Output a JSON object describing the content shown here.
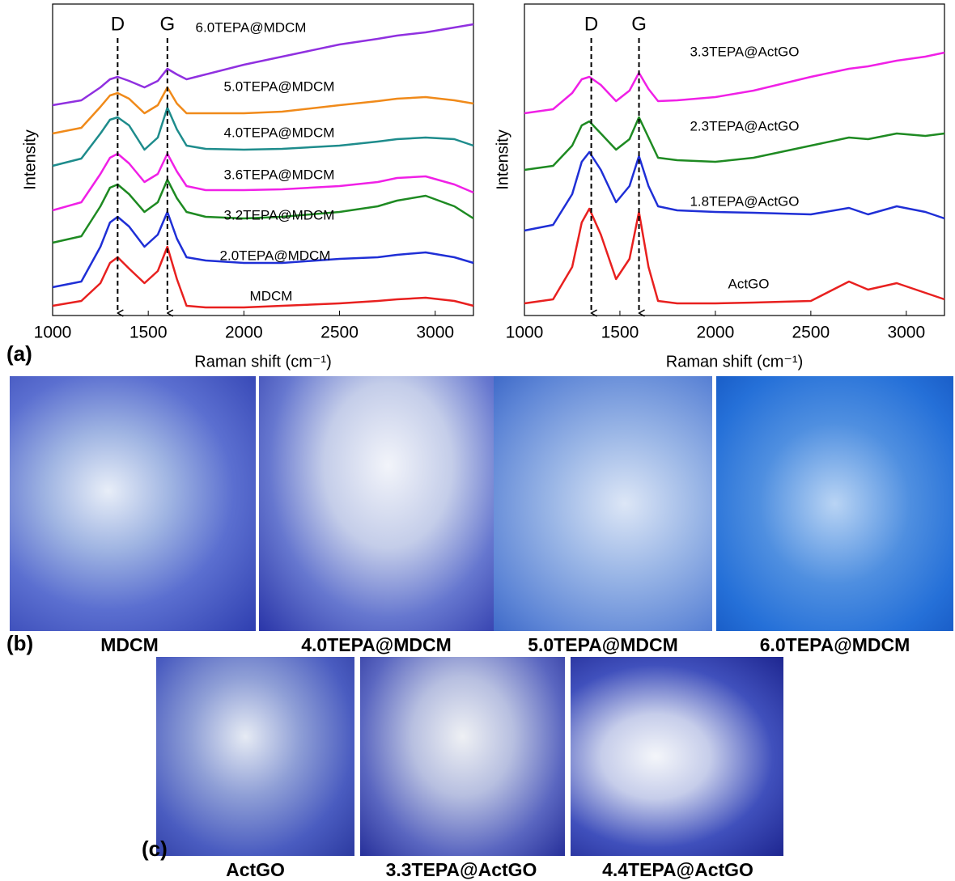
{
  "chart_data": [
    {
      "type": "line",
      "xlabel": "Raman shift (cm⁻¹)",
      "ylabel": "Intensity",
      "x": [
        1000,
        1150,
        1250,
        1300,
        1340,
        1400,
        1480,
        1550,
        1600,
        1650,
        1700,
        1800,
        2000,
        2200,
        2500,
        2700,
        2800,
        2950,
        3100,
        3200
      ],
      "xlim": [
        1000,
        3200
      ],
      "xticks": [
        1000,
        1500,
        2000,
        2500,
        3000
      ],
      "ylim": [
        0,
        385
      ],
      "peak_lines": [
        {
          "label": "D",
          "x": 1340
        },
        {
          "label": "G",
          "x": 1600
        }
      ],
      "series": [
        {
          "name": "MDCM",
          "color": "#e8201f",
          "values": [
            12,
            18,
            40,
            65,
            72,
            58,
            40,
            55,
            85,
            45,
            12,
            10,
            10,
            12,
            15,
            18,
            20,
            22,
            18,
            12
          ]
        },
        {
          "name": "2.0TEPA@MDCM",
          "color": "#1f2fd6",
          "values": [
            35,
            42,
            85,
            115,
            122,
            110,
            85,
            100,
            128,
            95,
            72,
            68,
            65,
            65,
            70,
            72,
            75,
            78,
            72,
            65
          ]
        },
        {
          "name": "3.2TEPA@MDCM",
          "color": "#1e8a22",
          "values": [
            90,
            98,
            135,
            158,
            162,
            150,
            128,
            140,
            168,
            145,
            128,
            122,
            120,
            122,
            128,
            135,
            142,
            148,
            135,
            120
          ]
        },
        {
          "name": "3.6TEPA@MDCM",
          "color": "#f020e6",
          "values": [
            130,
            140,
            175,
            195,
            200,
            188,
            165,
            175,
            200,
            178,
            160,
            155,
            155,
            156,
            160,
            165,
            170,
            172,
            162,
            152
          ]
        },
        {
          "name": "4.0TEPA@MDCM",
          "color": "#1e8c8c",
          "values": [
            185,
            194,
            225,
            242,
            245,
            235,
            205,
            220,
            257,
            230,
            210,
            206,
            205,
            206,
            210,
            215,
            218,
            220,
            218,
            210
          ]
        },
        {
          "name": "5.0TEPA@MDCM",
          "color": "#f08a1a",
          "values": [
            225,
            232,
            258,
            272,
            275,
            268,
            250,
            260,
            282,
            262,
            250,
            250,
            250,
            252,
            260,
            265,
            268,
            270,
            266,
            262
          ]
        },
        {
          "name": "6.0TEPA@MDCM",
          "color": "#9030e0",
          "values": [
            260,
            266,
            282,
            292,
            295,
            290,
            282,
            290,
            305,
            298,
            292,
            298,
            310,
            320,
            335,
            342,
            346,
            350,
            356,
            360
          ]
        }
      ]
    },
    {
      "type": "line",
      "xlabel": "Raman shift (cm⁻¹)",
      "ylabel": "Intensity",
      "x": [
        1000,
        1150,
        1250,
        1300,
        1340,
        1400,
        1480,
        1550,
        1600,
        1650,
        1700,
        1800,
        2000,
        2200,
        2500,
        2700,
        2800,
        2950,
        3100,
        3200
      ],
      "xlim": [
        1000,
        3200
      ],
      "xticks": [
        1000,
        1500,
        2000,
        2500,
        3000
      ],
      "ylim": [
        0,
        385
      ],
      "peak_lines": [
        {
          "label": "D",
          "x": 1350
        },
        {
          "label": "G",
          "x": 1600
        }
      ],
      "series": [
        {
          "name": "ActGO",
          "color": "#e8201f",
          "values": [
            15,
            20,
            60,
            115,
            132,
            100,
            45,
            70,
            128,
            60,
            18,
            15,
            15,
            16,
            18,
            42,
            32,
            40,
            28,
            20
          ]
        },
        {
          "name": "1.8TEPA@ActGO",
          "color": "#1f2fd6",
          "values": [
            105,
            112,
            150,
            190,
            202,
            180,
            140,
            160,
            197,
            160,
            135,
            130,
            128,
            127,
            125,
            133,
            125,
            135,
            128,
            120
          ]
        },
        {
          "name": "2.3TEPA@ActGO",
          "color": "#1e8a22",
          "values": [
            180,
            185,
            210,
            235,
            240,
            225,
            205,
            218,
            245,
            220,
            195,
            192,
            190,
            195,
            210,
            220,
            218,
            225,
            222,
            225
          ]
        },
        {
          "name": "3.3TEPA@ActGO",
          "color": "#f020e6",
          "values": [
            250,
            255,
            275,
            292,
            295,
            285,
            265,
            278,
            300,
            280,
            265,
            266,
            270,
            278,
            295,
            305,
            308,
            315,
            320,
            325
          ]
        }
      ]
    }
  ],
  "panel_labels": [
    "(a)",
    "(b)",
    "(c)"
  ],
  "micrographs_b": [
    "MDCM",
    "4.0TEPA@MDCM",
    "5.0TEPA@MDCM",
    "6.0TEPA@MDCM"
  ],
  "micrographs_c": [
    "ActGO",
    "3.3TEPA@ActGO",
    "4.4TEPA@ActGO"
  ]
}
